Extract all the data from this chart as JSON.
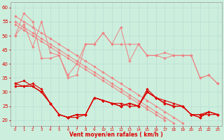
{
  "x": [
    0,
    1,
    2,
    3,
    4,
    5,
    6,
    7,
    8,
    9,
    10,
    11,
    12,
    13,
    14,
    15,
    16,
    17,
    18,
    19,
    20,
    21,
    22,
    23
  ],
  "lines_light_jagged": [
    [
      50,
      54,
      46,
      55,
      44,
      43,
      36,
      40,
      47,
      47,
      51,
      47,
      53,
      41,
      47,
      43,
      43,
      44,
      43,
      43,
      43,
      35,
      36,
      33
    ],
    [
      50,
      58,
      55,
      42,
      42,
      43,
      35,
      36,
      47,
      47,
      51,
      47,
      47,
      47,
      47,
      43,
      43,
      42,
      43,
      43,
      43,
      35,
      36,
      33
    ]
  ],
  "lines_light_smooth": [
    [
      57,
      55,
      53,
      51,
      49,
      47,
      45,
      43,
      41,
      39,
      37,
      35,
      33,
      31,
      29,
      27,
      25,
      23,
      21,
      19,
      null,
      null,
      null,
      null
    ],
    [
      55,
      53,
      51,
      49,
      47,
      45,
      43,
      41,
      39,
      37,
      35,
      33,
      31,
      29,
      27,
      25,
      23,
      21,
      19,
      null,
      null,
      null,
      null,
      null
    ],
    [
      54,
      52,
      50,
      48,
      46,
      44,
      42,
      40,
      38,
      36,
      34,
      32,
      30,
      28,
      26,
      24,
      22,
      20,
      null,
      null,
      null,
      null,
      null,
      null
    ]
  ],
  "lines_dark": [
    [
      33,
      32,
      33,
      31,
      26,
      22,
      21,
      22,
      22,
      28,
      27,
      26,
      25,
      26,
      25,
      31,
      28,
      27,
      26,
      25,
      22,
      21,
      23,
      22
    ],
    [
      33,
      34,
      32,
      30,
      26,
      22,
      21,
      21,
      22,
      28,
      27,
      26,
      26,
      25,
      25,
      30,
      28,
      26,
      25,
      25,
      22,
      21,
      23,
      22
    ],
    [
      32,
      32,
      32,
      30,
      26,
      22,
      21,
      22,
      22,
      28,
      27,
      26,
      25,
      26,
      25,
      30,
      28,
      26,
      25,
      25,
      22,
      22,
      23,
      22
    ],
    [
      32,
      32,
      32,
      30,
      26,
      22,
      21,
      22,
      22,
      28,
      27,
      26,
      25,
      26,
      25,
      30,
      28,
      26,
      25,
      25,
      22,
      22,
      22,
      22
    ]
  ],
  "light_color": "#f08080",
  "dark_color": "#dd0000",
  "bg_color": "#cceedd",
  "grid_color": "#aaddcc",
  "xlabel": "Vent moyen/en rafales ( km/h )",
  "ylim": [
    18,
    62
  ],
  "yticks": [
    20,
    25,
    30,
    35,
    40,
    45,
    50,
    55,
    60
  ],
  "xticks": [
    0,
    1,
    2,
    3,
    4,
    5,
    6,
    7,
    8,
    9,
    10,
    11,
    12,
    13,
    14,
    15,
    16,
    17,
    18,
    19,
    20,
    21,
    22,
    23
  ]
}
